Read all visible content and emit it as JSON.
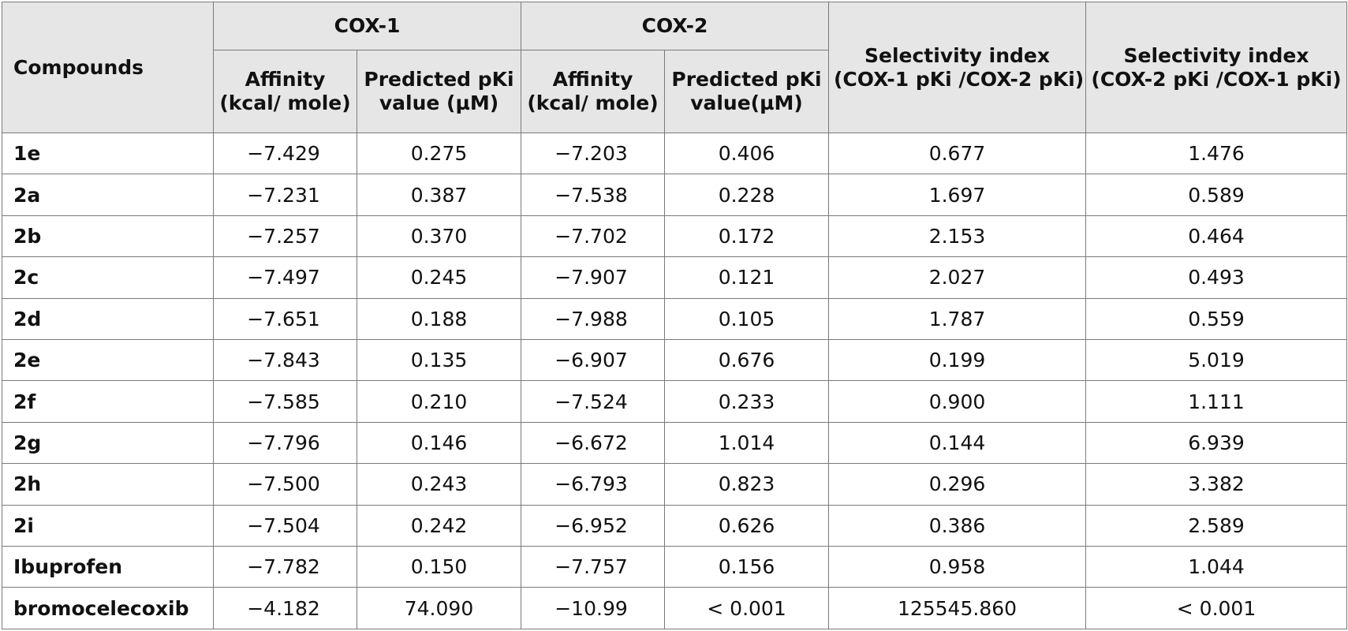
{
  "table": {
    "header": {
      "compounds": "Compounds",
      "cox1": "COX-1",
      "cox2": "COX-2",
      "cox1_affinity": [
        "Affinity",
        "(kcal/ mole)"
      ],
      "cox1_pki": [
        "Predicted pKi",
        "value (µM)"
      ],
      "cox2_affinity": [
        "Affinity",
        "(kcal/ mole)"
      ],
      "cox2_pki": [
        "Predicted pKi",
        "value(µM)"
      ],
      "selectivity1": [
        "Selectivity index",
        "(COX-1 pKi /COX-2 pKi)"
      ],
      "selectivity2": [
        "Selectivity index",
        "(COX-2 pKi /COX-1 pKi)"
      ]
    },
    "rows": [
      [
        "1e",
        "−7.429",
        "0.275",
        "−7.203",
        "0.406",
        "0.677",
        "1.476"
      ],
      [
        "2a",
        "−7.231",
        "0.387",
        "−7.538",
        "0.228",
        "1.697",
        "0.589"
      ],
      [
        "2b",
        "−7.257",
        "0.370",
        "−7.702",
        "0.172",
        "2.153",
        "0.464"
      ],
      [
        "2c",
        "−7.497",
        "0.245",
        "−7.907",
        "0.121",
        "2.027",
        "0.493"
      ],
      [
        "2d",
        "−7.651",
        "0.188",
        "−7.988",
        "0.105",
        "1.787",
        "0.559"
      ],
      [
        "2e",
        "−7.843",
        "0.135",
        "−6.907",
        "0.676",
        "0.199",
        "5.019"
      ],
      [
        "2f",
        "−7.585",
        "0.210",
        "−7.524",
        "0.233",
        "0.900",
        "1.111"
      ],
      [
        "2g",
        "−7.796",
        "0.146",
        "−6.672",
        "1.014",
        "0.144",
        "6.939"
      ],
      [
        "2h",
        "−7.500",
        "0.243",
        "−6.793",
        "0.823",
        "0.296",
        "3.382"
      ],
      [
        "2i",
        "−7.504",
        "0.242",
        "−6.952",
        "0.626",
        "0.386",
        "2.589"
      ],
      [
        "Ibuprofen",
        "−7.782",
        "0.150",
        "−7.757",
        "0.156",
        "0.958",
        "1.044"
      ],
      [
        "bromocelecoxib",
        "−4.182",
        "74.090",
        "−10.99",
        "< 0.001",
        "125545.860",
        "< 0.001"
      ]
    ]
  }
}
